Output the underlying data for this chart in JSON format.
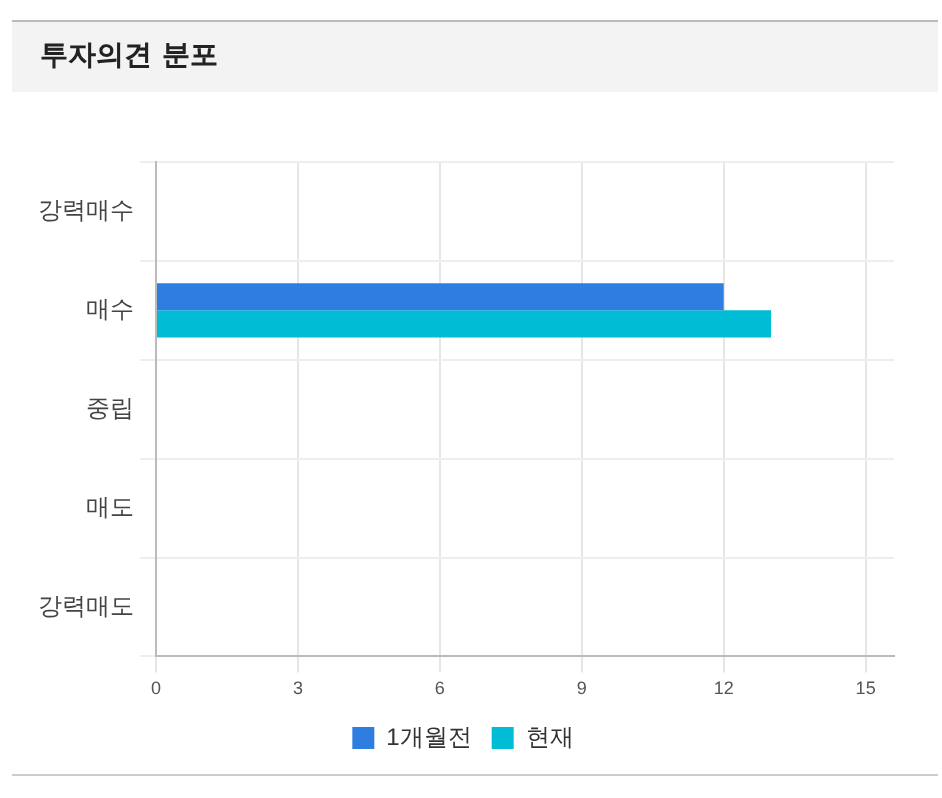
{
  "chart_data": {
    "type": "bar",
    "title": "투자의견 분포",
    "orientation": "horizontal",
    "categories": [
      "강력매수",
      "매수",
      "중립",
      "매도",
      "강력매도"
    ],
    "series": [
      {
        "name": "1개월전",
        "color": "#2e7de0",
        "values": [
          0,
          12,
          0,
          0,
          0
        ]
      },
      {
        "name": "현재",
        "color": "#00bcd4",
        "values": [
          0,
          13,
          0,
          0,
          0
        ]
      }
    ],
    "xlim": [
      0,
      15.6
    ],
    "xticks": [
      0,
      3,
      6,
      9,
      12,
      15
    ],
    "grid": true,
    "legend": "bottom"
  }
}
